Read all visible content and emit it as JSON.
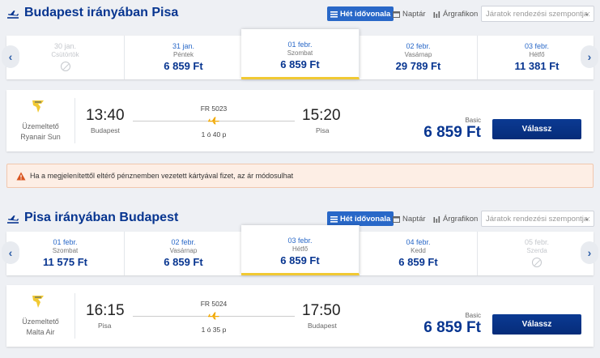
{
  "outbound": {
    "title": "Budapest irányában Pisa",
    "views": {
      "week": "Hét idővonala",
      "calendar": "Naptár",
      "chart": "Árgrafikon"
    },
    "sort_placeholder": "Járatok rendezési szempontja:",
    "dates": [
      {
        "date": "30 jan.",
        "weekday": "Csütörtök",
        "price": "",
        "status": "no-flight"
      },
      {
        "date": "31 jan.",
        "weekday": "Péntek",
        "price": "6 859 Ft",
        "status": "available"
      },
      {
        "date": "01 febr.",
        "weekday": "Szombat",
        "price": "6 859 Ft",
        "status": "selected"
      },
      {
        "date": "02 febr.",
        "weekday": "Vasárnap",
        "price": "29 789 Ft",
        "status": "available"
      },
      {
        "date": "03 febr.",
        "weekday": "Hétfő",
        "price": "11 381 Ft",
        "status": "available"
      }
    ],
    "flight": {
      "operator_label": "Üzemeltető",
      "operator_name": "Ryanair Sun",
      "depart_time": "13:40",
      "depart_city": "Budapest",
      "flight_no": "FR 5023",
      "duration": "1 ó 40 p",
      "arrive_time": "15:20",
      "arrive_city": "Pisa",
      "fare_label": "Basic",
      "price": "6 859 Ft",
      "select_label": "Válassz"
    }
  },
  "warning": {
    "text": "Ha a megjelenítettől eltérő pénznemben vezetett kártyával fizet, az ár módosulhat"
  },
  "return": {
    "title": "Pisa irányában Budapest",
    "views": {
      "week": "Hét idővonala",
      "calendar": "Naptár",
      "chart": "Árgrafikon"
    },
    "sort_placeholder": "Járatok rendezési szempontja:",
    "dates": [
      {
        "date": "01 febr.",
        "weekday": "Szombat",
        "price": "11 575 Ft",
        "status": "available"
      },
      {
        "date": "02 febr.",
        "weekday": "Vasárnap",
        "price": "6 859 Ft",
        "status": "available"
      },
      {
        "date": "03 febr.",
        "weekday": "Hétfő",
        "price": "6 859 Ft",
        "status": "selected"
      },
      {
        "date": "04 febr.",
        "weekday": "Kedd",
        "price": "6 859 Ft",
        "status": "available"
      },
      {
        "date": "05 febr.",
        "weekday": "Szerda",
        "price": "",
        "status": "no-flight"
      }
    ],
    "flight": {
      "operator_label": "Üzemeltető",
      "operator_name": "Malta Air",
      "depart_time": "16:15",
      "depart_city": "Pisa",
      "flight_no": "FR 5024",
      "duration": "1 ó 35 p",
      "arrive_time": "17:50",
      "arrive_city": "Budapest",
      "fare_label": "Basic",
      "price": "6 859 Ft",
      "select_label": "Válassz"
    }
  },
  "colors": {
    "brand_blue": "#073590",
    "accent_yellow": "#f1c933",
    "select_blue": "#2968c8"
  }
}
